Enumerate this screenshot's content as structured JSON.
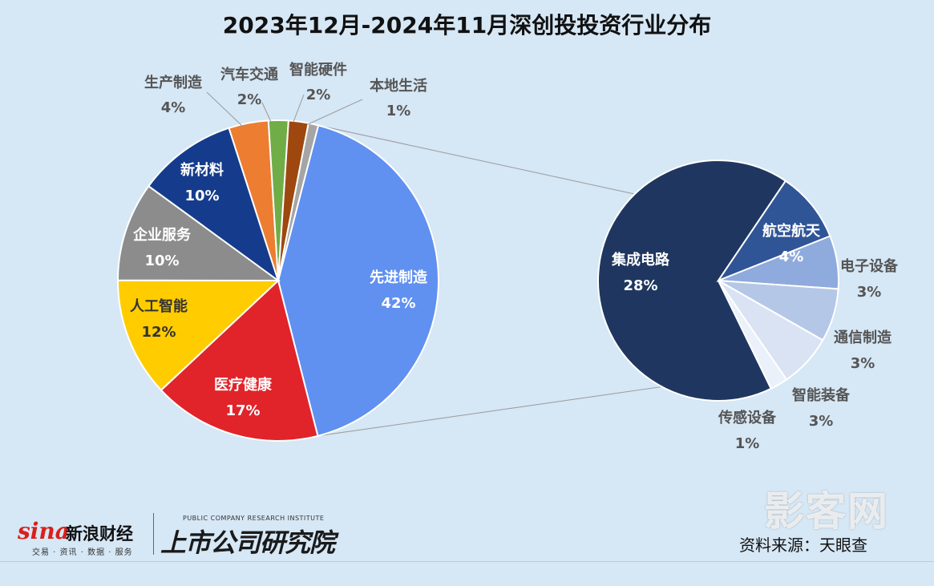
{
  "chart_data": {
    "type": "pie",
    "title": "2023年12月-2024年11月深创投投资行业分布",
    "main_pie": {
      "slices": [
        {
          "label": "先进制造",
          "value": 42,
          "display": "42%",
          "color": "#6090f0"
        },
        {
          "label": "医疗健康",
          "value": 17,
          "display": "17%",
          "color": "#e0242a"
        },
        {
          "label": "人工智能",
          "value": 12,
          "display": "12%",
          "color": "#ffcc00"
        },
        {
          "label": "企业服务",
          "value": 10,
          "display": "10%",
          "color": "#8c8c8c"
        },
        {
          "label": "新材料",
          "value": 10,
          "display": "10%",
          "color": "#153c8c"
        },
        {
          "label": "生产制造",
          "value": 4,
          "display": "4%",
          "color": "#ed7d31"
        },
        {
          "label": "汽车交通",
          "value": 2,
          "display": "2%",
          "color": "#70ad47"
        },
        {
          "label": "智能硬件",
          "value": 2,
          "display": "2%",
          "color": "#9e4810"
        },
        {
          "label": "本地生活",
          "value": 1,
          "display": "1%",
          "color": "#a5a5a5"
        }
      ]
    },
    "sub_pie": {
      "slices": [
        {
          "label": "集成电路",
          "value": 28,
          "display": "28%",
          "color": "#1f3760"
        },
        {
          "label": "航空航天",
          "value": 4,
          "display": "4%",
          "color": "#2f5597"
        },
        {
          "label": "电子设备",
          "value": 3,
          "display": "3%",
          "color": "#8faadc"
        },
        {
          "label": "通信制造",
          "value": 3,
          "display": "3%",
          "color": "#b4c7e7"
        },
        {
          "label": "智能装备",
          "value": 3,
          "display": "3%",
          "color": "#dae3f3"
        },
        {
          "label": "传感设备",
          "value": 1,
          "display": "1%",
          "color": "#eaf1fa"
        }
      ]
    },
    "colors": {
      "background": "#d6e7f5",
      "connector": "#9a9a9a"
    }
  },
  "branding": {
    "sina_mark": "sina",
    "sina_name": "新浪财经",
    "sina_sub": "交易 · 资讯 · 数据 · 服务",
    "institute_en": "PUBLIC COMPANY RESEARCH INSTITUTE",
    "institute_cn": "上市公司研究院",
    "watermark": "影客网"
  },
  "source": "资料来源：天眼查"
}
